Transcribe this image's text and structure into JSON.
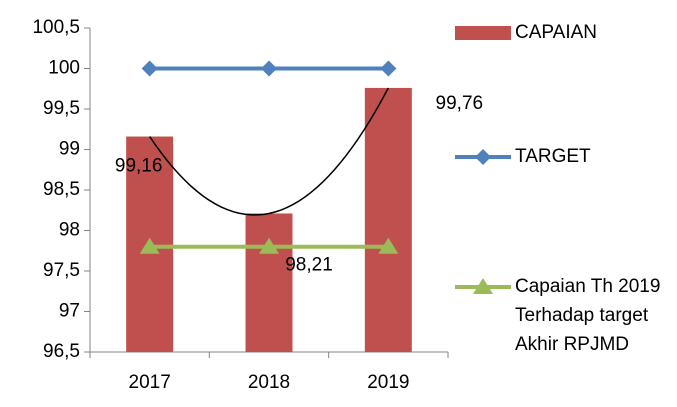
{
  "chart_data": {
    "type": "bar",
    "categories": [
      "2017",
      "2018",
      "2019"
    ],
    "series": [
      {
        "name": "CAPAIAN",
        "type": "bar",
        "color": "#c0504d",
        "values": [
          99.16,
          98.21,
          99.76
        ],
        "value_labels": [
          "99,16",
          "98,21",
          "99,76"
        ]
      },
      {
        "name": "TARGET",
        "type": "line",
        "marker": "diamond",
        "color": "#4f81bd",
        "values": [
          100,
          100,
          100
        ]
      },
      {
        "name": "Capaian Th 2019 Terhadap target Akhir RPJMD",
        "type": "line",
        "marker": "triangle",
        "color": "#9bbb59",
        "values": [
          97.8,
          97.8,
          97.8
        ]
      }
    ],
    "trendline": "polynomial",
    "ylim": [
      96.5,
      100.5
    ],
    "yticks": [
      {
        "value": 96.5,
        "label": "96,5"
      },
      97,
      {
        "value": 97.5,
        "label": "97,5"
      },
      98,
      {
        "value": 98.5,
        "label": "98,5"
      },
      99,
      {
        "value": 99.5,
        "label": "99,5"
      },
      100,
      {
        "value": 100.5,
        "label": "100,5"
      }
    ],
    "legend": "right"
  }
}
